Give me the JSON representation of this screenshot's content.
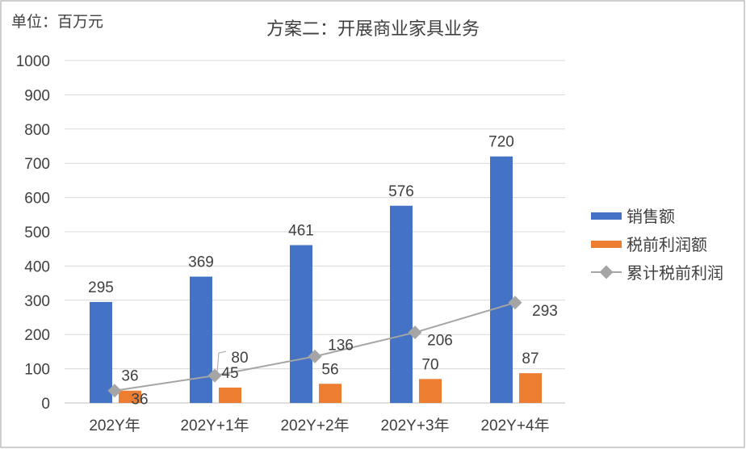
{
  "chart_data": {
    "type": "bar",
    "title": "方案二：开展商业家具业务",
    "unit_label": "单位：百万元",
    "categories": [
      "202Y年",
      "202Y+1年",
      "202Y+2年",
      "202Y+3年",
      "202Y+4年"
    ],
    "ylim": [
      0,
      1000
    ],
    "yticks": [
      0,
      100,
      200,
      300,
      400,
      500,
      600,
      700,
      800,
      900,
      1000
    ],
    "grid": true,
    "legend_position": "right",
    "series": [
      {
        "name": "销售额",
        "kind": "bar",
        "color": "#4472C4",
        "values": [
          295,
          369,
          461,
          576,
          720
        ]
      },
      {
        "name": "税前利润额",
        "kind": "bar",
        "color": "#ED7D31",
        "values": [
          36,
          45,
          56,
          70,
          87
        ]
      },
      {
        "name": "累计税前利润",
        "kind": "line",
        "marker": "diamond",
        "color": "#A5A5A5",
        "values": [
          36,
          80,
          136,
          206,
          293
        ]
      }
    ]
  }
}
